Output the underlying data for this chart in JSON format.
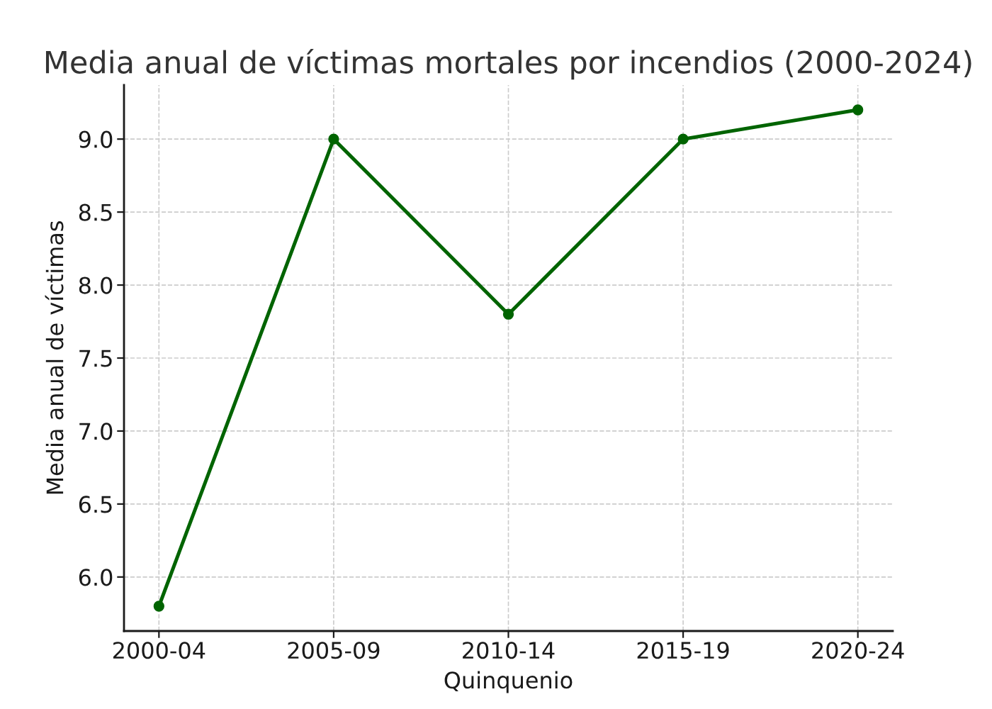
{
  "chart_data": {
    "type": "line",
    "title": "Media anual de víctimas mortales por incendios (2000-2024)",
    "xlabel": "Quinquenio",
    "ylabel": "Media anual de víctimas",
    "categories": [
      "2000-04",
      "2005-09",
      "2010-14",
      "2015-19",
      "2020-24"
    ],
    "series": [
      {
        "color": "#006400",
        "values": [
          5.8,
          9.0,
          7.8,
          9.0,
          9.2
        ]
      }
    ],
    "ylim": [
      5.63,
      9.37
    ],
    "yticks": [
      {
        "value": 6,
        "label": "6.0"
      },
      {
        "value": 6.5,
        "label": "6.5"
      },
      {
        "value": 7,
        "label": "7.0"
      },
      {
        "value": 7.5,
        "label": "7.5"
      },
      {
        "value": 8,
        "label": "8.0"
      },
      {
        "value": 8.5,
        "label": "8.5"
      },
      {
        "value": 9,
        "label": "9.0"
      }
    ],
    "grid": true,
    "marker": "circle",
    "line_style": "solid"
  }
}
